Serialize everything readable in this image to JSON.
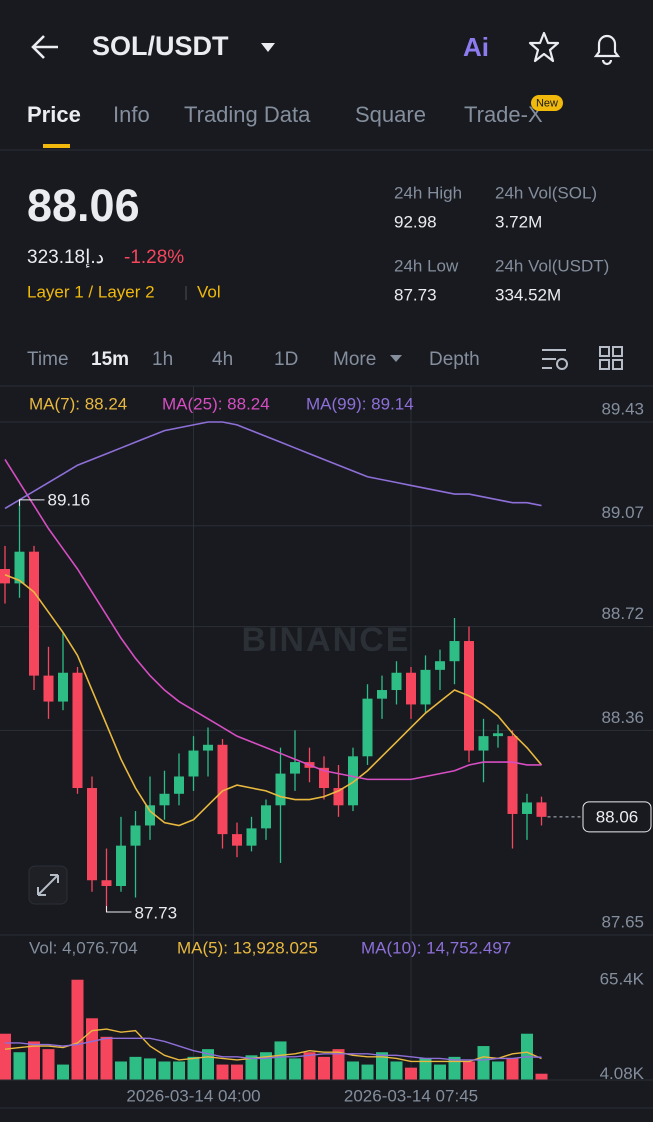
{
  "header": {
    "title": "SOL/USDT"
  },
  "tabs": [
    "Price",
    "Info",
    "Trading Data",
    "Square",
    "Trade-X"
  ],
  "badge": "New",
  "ticker": {
    "price": "88.06",
    "local_price": "323.18د.إ",
    "change": "-1.28%",
    "tags": [
      "Layer 1 / Layer 2",
      "Vol"
    ],
    "stats": [
      {
        "label": "24h High",
        "value": "92.98"
      },
      {
        "label": "24h Vol(SOL)",
        "value": "3.72M"
      },
      {
        "label": "24h Low",
        "value": "87.73"
      },
      {
        "label": "24h Vol(USDT)",
        "value": "334.52M"
      }
    ]
  },
  "intervals": [
    "Time",
    "15m",
    "1h",
    "4h",
    "1D",
    "More",
    "Depth"
  ],
  "chart_data": [
    {
      "type": "candlestick",
      "watermark": "BINANCE",
      "categories": [
        null,
        null,
        null,
        null,
        null,
        null,
        null,
        null,
        null,
        null,
        null,
        null,
        null,
        "2026-03-14 04:00",
        null,
        null,
        null,
        null,
        null,
        null,
        null,
        null,
        null,
        null,
        null,
        null,
        null,
        null,
        "2026-03-14 07:45",
        null,
        null,
        null,
        null,
        null,
        null,
        null,
        null,
        null
      ],
      "open": [
        88.92,
        88.87,
        88.98,
        88.55,
        88.46,
        88.56,
        88.16,
        87.84,
        87.82,
        87.96,
        88.03,
        88.1,
        88.14,
        88.2,
        88.29,
        88.31,
        88.0,
        87.96,
        88.02,
        88.1,
        88.21,
        88.25,
        88.23,
        88.16,
        88.1,
        88.27,
        88.47,
        88.5,
        88.56,
        88.45,
        88.57,
        88.6,
        88.67,
        88.29,
        88.34,
        88.34,
        88.07,
        88.11
      ],
      "high": [
        89.0,
        89.16,
        89.0,
        88.65,
        88.7,
        88.58,
        88.2,
        87.95,
        88.06,
        88.08,
        88.2,
        88.22,
        88.28,
        88.34,
        88.37,
        88.33,
        88.04,
        88.06,
        88.12,
        88.3,
        88.36,
        88.3,
        88.27,
        88.24,
        88.3,
        88.52,
        88.55,
        88.6,
        88.58,
        88.62,
        88.64,
        88.75,
        88.72,
        88.4,
        88.38,
        88.36,
        88.14,
        88.13
      ],
      "low": [
        88.8,
        88.82,
        88.5,
        88.4,
        88.43,
        88.14,
        87.8,
        87.73,
        87.8,
        87.78,
        87.98,
        88.05,
        88.1,
        88.15,
        88.2,
        87.95,
        87.92,
        87.94,
        87.98,
        87.9,
        88.15,
        88.18,
        88.12,
        88.06,
        88.08,
        88.24,
        88.4,
        88.45,
        88.4,
        88.42,
        88.5,
        88.52,
        88.25,
        88.18,
        88.3,
        87.95,
        87.98,
        88.03
      ],
      "close": [
        88.87,
        88.98,
        88.55,
        88.46,
        88.56,
        88.16,
        87.84,
        87.82,
        87.96,
        88.03,
        88.1,
        88.14,
        88.2,
        88.29,
        88.31,
        88.0,
        87.96,
        88.02,
        88.1,
        88.21,
        88.25,
        88.23,
        88.16,
        88.1,
        88.27,
        88.47,
        88.5,
        88.56,
        88.45,
        88.57,
        88.6,
        88.67,
        88.29,
        88.34,
        88.35,
        88.07,
        88.11,
        88.06
      ],
      "up_color": "#2ebd85",
      "down_color": "#f6465d",
      "series": [
        {
          "color": "#e9b83e",
          "values": [
            88.9,
            88.88,
            88.84,
            88.77,
            88.7,
            88.62,
            88.5,
            88.38,
            88.26,
            88.16,
            88.08,
            88.04,
            88.03,
            88.05,
            88.1,
            88.15,
            88.17,
            88.16,
            88.15,
            88.13,
            88.12,
            88.12,
            88.13,
            88.15,
            88.18,
            88.22,
            88.27,
            88.32,
            88.37,
            88.42,
            88.46,
            88.5,
            88.48,
            88.45,
            88.41,
            88.35,
            88.3,
            88.24
          ]
        },
        {
          "color": "#d64ec2",
          "values": [
            89.3,
            89.22,
            89.14,
            89.06,
            88.99,
            88.92,
            88.84,
            88.76,
            88.68,
            88.61,
            88.55,
            88.5,
            88.46,
            88.43,
            88.4,
            88.37,
            88.34,
            88.32,
            88.3,
            88.28,
            88.26,
            88.24,
            88.22,
            88.21,
            88.2,
            88.19,
            88.19,
            88.19,
            88.19,
            88.2,
            88.21,
            88.22,
            88.24,
            88.25,
            88.25,
            88.25,
            88.24,
            88.24
          ]
        },
        {
          "color": "#8e6fd8",
          "values": [
            89.13,
            89.16,
            89.19,
            89.22,
            89.25,
            89.28,
            89.3,
            89.32,
            89.34,
            89.36,
            89.38,
            89.4,
            89.41,
            89.42,
            89.43,
            89.43,
            89.42,
            89.4,
            89.38,
            89.36,
            89.34,
            89.32,
            89.3,
            89.28,
            89.26,
            89.24,
            89.23,
            89.22,
            89.21,
            89.2,
            89.19,
            89.18,
            89.18,
            89.17,
            89.16,
            89.15,
            89.15,
            89.14
          ]
        }
      ],
      "legend": [
        "MA(7): 88.24",
        "MA(25): 88.24",
        "MA(99): 89.14"
      ],
      "annotations": {
        "high_label": "89.16",
        "low_label": "87.73"
      },
      "last_price": 88.06,
      "ylim": [
        87.65,
        89.43
      ],
      "yticks": [
        87.65,
        88.36,
        88.72,
        89.07,
        89.43
      ],
      "grid": true
    },
    {
      "type": "bar",
      "values": [
        30000,
        18000,
        25000,
        20000,
        10000,
        65000,
        40000,
        28000,
        12000,
        15000,
        14000,
        12000,
        12000,
        15000,
        20000,
        10000,
        10000,
        16000,
        18000,
        25000,
        14000,
        18000,
        15000,
        20000,
        12000,
        10000,
        18000,
        12000,
        8000,
        14000,
        10000,
        15000,
        12000,
        22000,
        12000,
        14000,
        30000,
        4076.704
      ],
      "series": [
        {
          "color": "#e9b83e",
          "values": [
            20000,
            21000,
            22000,
            22000,
            21000,
            24000,
            32000,
            33000,
            31000,
            32000,
            22000,
            16000,
            13000,
            14000,
            15000,
            14000,
            13000,
            14000,
            15000,
            16000,
            17000,
            19000,
            18000,
            18000,
            16000,
            15000,
            15000,
            14000,
            12000,
            12000,
            12000,
            12000,
            12000,
            15000,
            14000,
            17000,
            18000,
            13928.025
          ]
        },
        {
          "color": "#8e6fd8",
          "values": [
            24000,
            24000,
            23000,
            23000,
            22000,
            23000,
            25000,
            27000,
            27000,
            27000,
            27000,
            25000,
            22000,
            19000,
            17000,
            15000,
            15000,
            14000,
            14000,
            15000,
            15000,
            16000,
            17000,
            17000,
            17000,
            17000,
            16000,
            16000,
            15000,
            14000,
            14000,
            13000,
            13000,
            13000,
            14000,
            14000,
            15000,
            14752.497
          ]
        }
      ],
      "legend": [
        "Vol: 4,076.704",
        "MA(5): 13,928.025",
        "MA(10): 14,752.497"
      ],
      "ylim": [
        0,
        70000
      ],
      "yticks": [
        {
          "value": 4080,
          "label": "4.08K"
        },
        {
          "value": 65400,
          "label": "65.4K"
        }
      ]
    }
  ]
}
